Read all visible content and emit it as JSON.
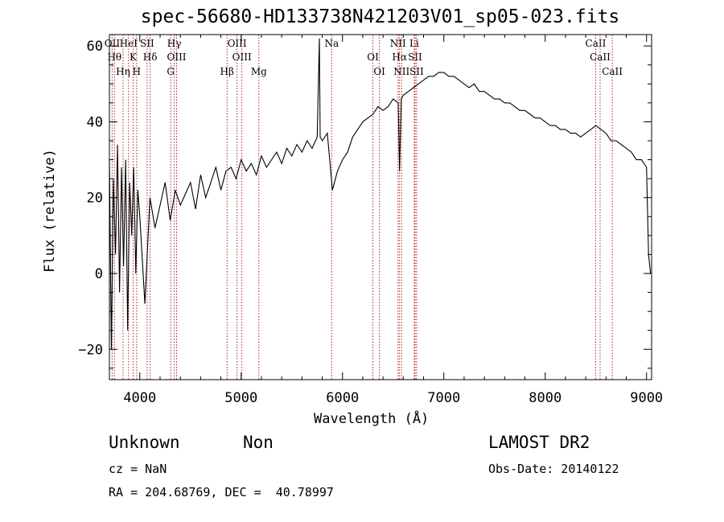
{
  "chart_data": {
    "type": "line",
    "title": "spec-56680-HD133738N421203V01_sp05-023.fits",
    "xlabel": "Wavelength (Å)",
    "ylabel": "Flux (relative)",
    "xlim": [
      3700,
      9050
    ],
    "ylim": [
      -28,
      63
    ],
    "x_ticks": [
      4000,
      5000,
      6000,
      7000,
      8000,
      9000
    ],
    "y_ticks": [
      -20,
      0,
      20,
      40,
      60
    ],
    "series": [
      {
        "x": [
          3700,
          3720,
          3740,
          3760,
          3780,
          3800,
          3820,
          3840,
          3860,
          3880,
          3900,
          3920,
          3940,
          3960,
          3980,
          4000,
          4050,
          4100,
          4150,
          4200,
          4250,
          4300,
          4350,
          4400,
          4450,
          4500,
          4550,
          4600,
          4650,
          4700,
          4750,
          4800,
          4850,
          4900,
          4950,
          5000,
          5050,
          5100,
          5150,
          5200,
          5250,
          5300,
          5350,
          5400,
          5450,
          5500,
          5550,
          5600,
          5650,
          5700,
          5750,
          5772,
          5780,
          5800,
          5850,
          5900,
          5950,
          6000,
          6050,
          6100,
          6150,
          6200,
          6250,
          6300,
          6350,
          6400,
          6450,
          6500,
          6550,
          6563,
          6580,
          6600,
          6650,
          6700,
          6750,
          6800,
          6850,
          6900,
          6950,
          7000,
          7050,
          7100,
          7150,
          7200,
          7250,
          7300,
          7350,
          7400,
          7450,
          7500,
          7550,
          7600,
          7650,
          7700,
          7750,
          7800,
          7850,
          7900,
          7950,
          8000,
          8050,
          8100,
          8150,
          8200,
          8250,
          8300,
          8350,
          8400,
          8450,
          8500,
          8550,
          8600,
          8650,
          8700,
          8750,
          8800,
          8850,
          8900,
          8950,
          9000,
          9020,
          9040
        ],
        "y": [
          30,
          -20,
          25,
          5,
          34,
          -5,
          28,
          2,
          30,
          -15,
          24,
          10,
          28,
          0,
          22,
          15,
          -8,
          20,
          12,
          18,
          24,
          14,
          22,
          18,
          21,
          24,
          17,
          26,
          20,
          24,
          28,
          22,
          27,
          28,
          25,
          30,
          27,
          29,
          26,
          31,
          28,
          30,
          32,
          29,
          33,
          31,
          34,
          32,
          35,
          33,
          36,
          62,
          36,
          35,
          37,
          22,
          27,
          30,
          32,
          36,
          38,
          40,
          41,
          42,
          44,
          43,
          44,
          46,
          45,
          27,
          46,
          47,
          48,
          49,
          50,
          51,
          52,
          52,
          53,
          53,
          52,
          52,
          51,
          50,
          49,
          50,
          48,
          48,
          47,
          46,
          46,
          45,
          45,
          44,
          43,
          43,
          42,
          41,
          41,
          40,
          39,
          39,
          38,
          38,
          37,
          37,
          36,
          37,
          38,
          39,
          38,
          37,
          35,
          35,
          34,
          33,
          32,
          30,
          30,
          28,
          5,
          0
        ]
      }
    ],
    "line_markers": [
      {
        "label": "OII",
        "x": 3727
      },
      {
        "label": "Hθ",
        "x": 3750
      },
      {
        "label": "Hη",
        "x": 3835
      },
      {
        "label": "HeI",
        "x": 3889
      },
      {
        "label": "K",
        "x": 3934
      },
      {
        "label": "H",
        "x": 3969
      },
      {
        "label": "SII",
        "x": 4072
      },
      {
        "label": "Hδ",
        "x": 4102
      },
      {
        "label": "G",
        "x": 4305
      },
      {
        "label": "Hγ",
        "x": 4340
      },
      {
        "label": "OIII",
        "x": 4363
      },
      {
        "label": "Hβ",
        "x": 4861
      },
      {
        "label": "OIII",
        "x": 4959
      },
      {
        "label": "OIII",
        "x": 5007
      },
      {
        "label": "Mg",
        "x": 5175
      },
      {
        "label": "Na",
        "x": 5893
      },
      {
        "label": "OI",
        "x": 6300
      },
      {
        "label": "OI",
        "x": 6364
      },
      {
        "label": "NII",
        "x": 6548
      },
      {
        "label": "Hα",
        "x": 6563
      },
      {
        "label": "NII",
        "x": 6583
      },
      {
        "label": "Li",
        "x": 6708
      },
      {
        "label": "SII",
        "x": 6716
      },
      {
        "label": "SII",
        "x": 6731
      },
      {
        "label": "CaII",
        "x": 8498
      },
      {
        "label": "CaII",
        "x": 8542
      },
      {
        "label": "CaII",
        "x": 8662
      }
    ]
  },
  "info": {
    "object_name": "Unknown",
    "object_class": "Non",
    "redshift": "cz = NaN",
    "coords": "RA = 204.68769, DEC =  40.78997",
    "survey": "LAMOST DR2",
    "obs_date": "Obs-Date: 20140122"
  },
  "colors": {
    "spectrum": "#000000",
    "marker": "#b22222",
    "axis": "#000000"
  }
}
